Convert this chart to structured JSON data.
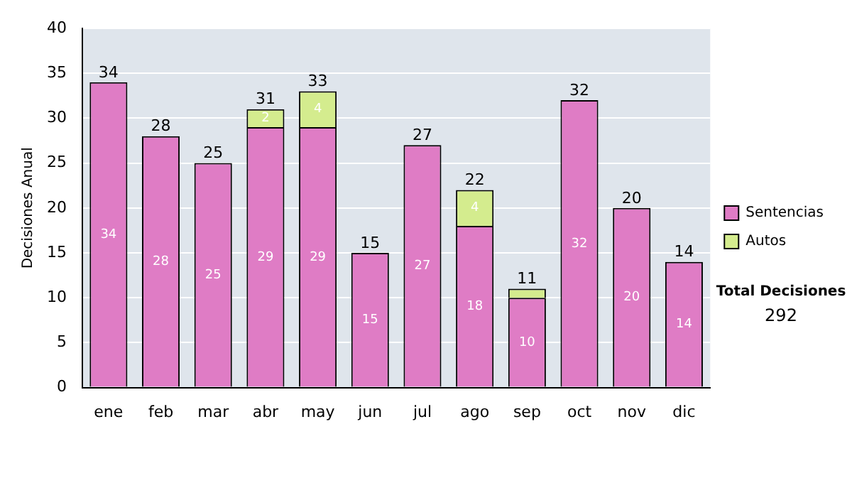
{
  "chart_data": {
    "type": "bar",
    "stacked": true,
    "ylabel": "Decisiones Anual",
    "categories": [
      "ene",
      "feb",
      "mar",
      "abr",
      "may",
      "jun",
      "jul",
      "ago",
      "sep",
      "oct",
      "nov",
      "dic"
    ],
    "series": [
      {
        "name": "Sentencias",
        "color": "#df7cc5",
        "values": [
          34,
          28,
          25,
          29,
          29,
          15,
          27,
          18,
          10,
          32,
          20,
          14
        ],
        "value_labels": [
          "34",
          "28",
          "25",
          "29",
          "29",
          "15",
          "27",
          "18",
          "10",
          "32",
          "20",
          "14"
        ]
      },
      {
        "name": "Autos",
        "color": "#d4ec8e",
        "values": [
          0,
          0,
          0,
          2,
          4,
          0,
          0,
          4,
          1,
          0,
          0,
          0
        ],
        "value_labels": [
          null,
          null,
          null,
          "2",
          "4",
          null,
          null,
          "4",
          null,
          null,
          null,
          null
        ]
      }
    ],
    "totals": [
      "34",
      "28",
      "25",
      "31",
      "33",
      "15",
      "27",
      "22",
      "11",
      "32",
      "20",
      "14"
    ],
    "ylim": [
      0,
      40
    ],
    "yticks": [
      0,
      5,
      10,
      15,
      20,
      25,
      30,
      35,
      40
    ],
    "grid": "y",
    "legend": "right",
    "annotations": [
      "Total Decisiones",
      "292"
    ]
  }
}
